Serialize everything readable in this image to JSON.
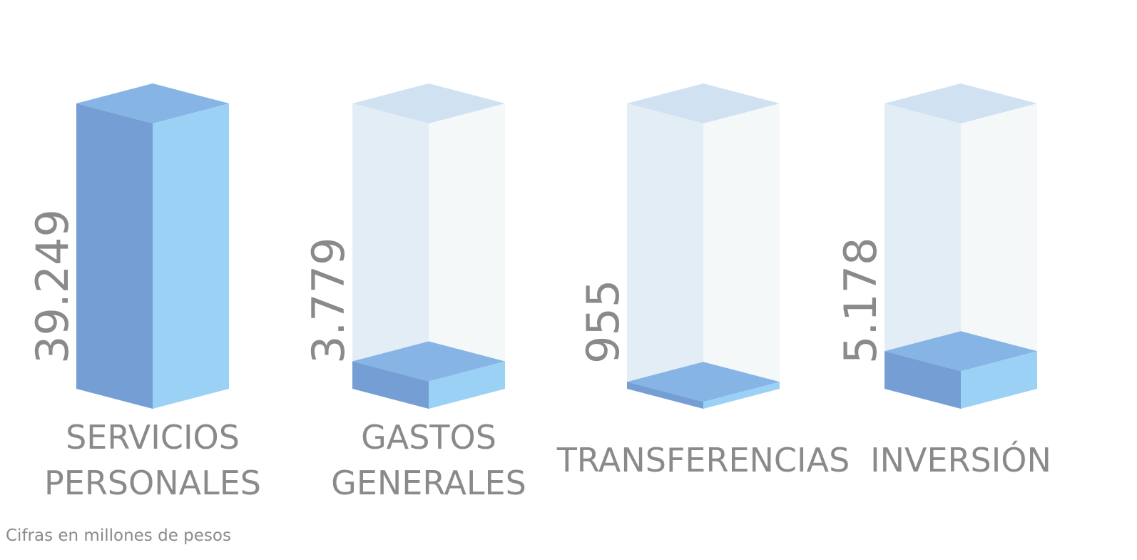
{
  "chart_data": {
    "type": "bar3d",
    "categories": [
      "SERVICIOS PERSONALES",
      "GASTOS GENERALES",
      "TRANSFERENCIAS",
      "INVERSIÓN"
    ],
    "values": [
      39249,
      3779,
      955,
      5178
    ],
    "value_labels": [
      "39.249",
      "3.779",
      "955",
      "5.178"
    ],
    "colors": {
      "left": "#759fd4",
      "right": "#9bd1f4",
      "top": "#86b5e5"
    },
    "note": "Cifras en millones de pesos"
  }
}
